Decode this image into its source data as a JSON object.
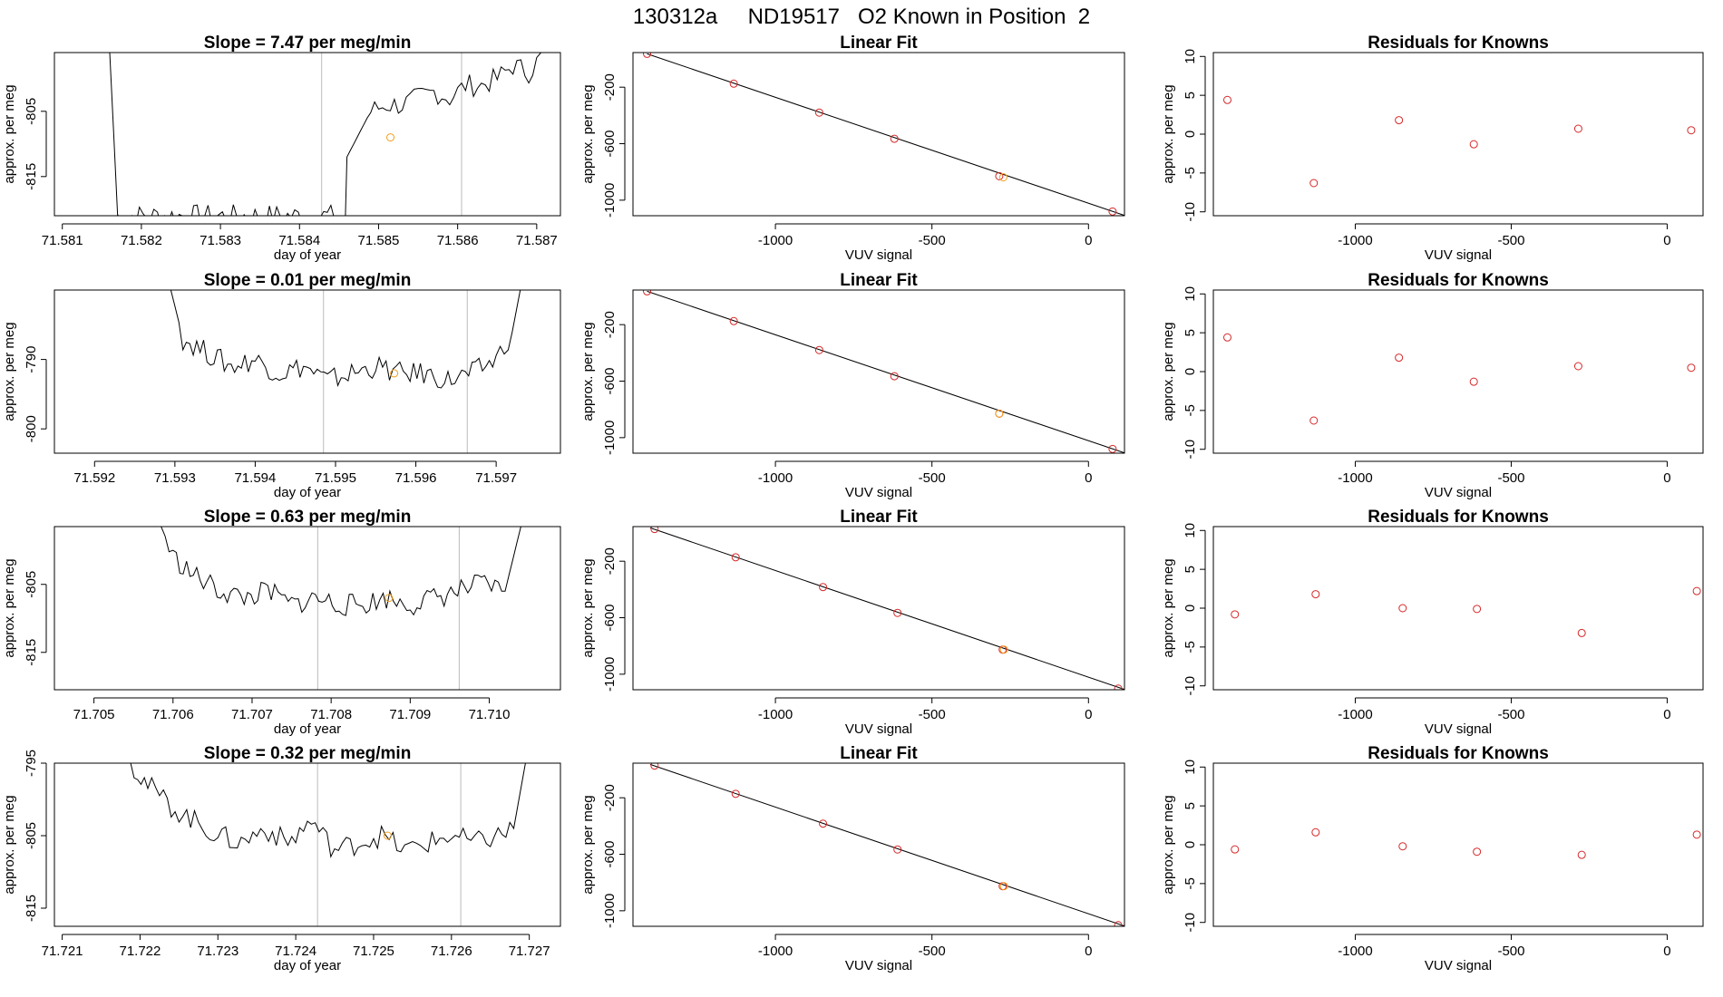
{
  "page_title": "130312a     ND19517   O2 Known in Position  2",
  "colors": {
    "line": "#000000",
    "point_red": "#d62728",
    "point_orange": "#f2a01f",
    "vline": "#bbbbbb"
  },
  "chart_data": [
    {
      "type": "line",
      "row": 0,
      "title": "Slope =  7.47  per meg/min",
      "xlabel": "day of year",
      "ylabel": "approx. per meg",
      "xlim": [
        71.5809,
        71.5873
      ],
      "ylim": [
        -821,
        -796
      ],
      "x_ticks": [
        71.581,
        71.582,
        71.583,
        71.584,
        71.585,
        71.586,
        71.587
      ],
      "y_ticks": [
        -805,
        -815
      ],
      "vlines": [
        71.58428,
        71.58605
      ],
      "series": [
        {
          "x": [
            71.5816,
            71.5817,
            71.5817,
            71.58458,
            71.5846,
            71.5849,
            71.5851,
            71.5853,
            71.5855,
            71.5857,
            71.5859,
            71.5861,
            71.5863,
            71.5865,
            71.5867,
            71.5869,
            71.5871,
            71.5872
          ],
          "y": [
            -796,
            -821,
            -821,
            -821,
            -812,
            -805,
            -804,
            -804,
            -803,
            -802,
            -803,
            -801,
            -801,
            -800,
            -798,
            -799,
            -796,
            -796
          ]
        }
      ],
      "highlight": [
        {
          "x": 71.58515,
          "y": -809
        }
      ]
    },
    {
      "type": "line",
      "row": 1,
      "title": "Slope =  0.01  per meg/min",
      "xlabel": "day of year",
      "ylabel": "approx. per meg",
      "xlim": [
        71.5915,
        71.5978
      ],
      "ylim": [
        -803.5,
        -780
      ],
      "x_ticks": [
        71.592,
        71.593,
        71.594,
        71.595,
        71.596,
        71.597
      ],
      "y_ticks": [
        -790,
        -800
      ],
      "vlines": [
        71.59485,
        71.59664
      ],
      "series": [
        {
          "x": [
            71.59295,
            71.5931,
            71.5934,
            71.5937,
            71.594,
            71.5943,
            71.5946,
            71.5949,
            71.5952,
            71.5955,
            71.5958,
            71.5961,
            71.5964,
            71.5967,
            71.597,
            71.5972,
            71.5973
          ],
          "y": [
            -780,
            -787,
            -789,
            -791,
            -790,
            -792,
            -791,
            -793,
            -792,
            -791,
            -792,
            -792,
            -793,
            -792,
            -790,
            -786,
            -780
          ]
        }
      ],
      "highlight": [
        {
          "x": 71.59573,
          "y": -792
        }
      ]
    },
    {
      "type": "line",
      "row": 2,
      "title": "Slope =  0.63  per meg/min",
      "xlabel": "day of year",
      "ylabel": "approx. per meg",
      "xlim": [
        71.7045,
        71.7109
      ],
      "ylim": [
        -820.5,
        -796.5
      ],
      "x_ticks": [
        71.705,
        71.706,
        71.707,
        71.708,
        71.709,
        71.71
      ],
      "y_ticks": [
        -805,
        -815
      ],
      "vlines": [
        71.70783,
        71.70962
      ],
      "series": [
        {
          "x": [
            71.70585,
            71.706,
            71.7063,
            71.7066,
            71.7069,
            71.7072,
            71.7075,
            71.7078,
            71.7081,
            71.7084,
            71.7087,
            71.709,
            71.7093,
            71.7096,
            71.7099,
            71.7102,
            71.7104
          ],
          "y": [
            -796.5,
            -801,
            -804,
            -806,
            -807,
            -806,
            -808,
            -807,
            -808,
            -808,
            -807,
            -808,
            -807,
            -806,
            -805,
            -806,
            -796.5
          ]
        }
      ],
      "highlight": [
        {
          "x": 71.70873,
          "y": -807
        }
      ]
    },
    {
      "type": "line",
      "row": 3,
      "title": "Slope =  0.32  per meg/min",
      "xlabel": "day of year",
      "ylabel": "approx. per meg",
      "xlim": [
        71.7209,
        71.7274
      ],
      "ylim": [
        -817.5,
        -795
      ],
      "x_ticks": [
        71.721,
        71.722,
        71.723,
        71.724,
        71.725,
        71.726,
        71.727
      ],
      "y_ticks": [
        -795,
        -805,
        -815
      ],
      "vlines": [
        71.72428,
        71.72612
      ],
      "series": [
        {
          "x": [
            71.72188,
            71.7221,
            71.7224,
            71.7227,
            71.723,
            71.7233,
            71.7236,
            71.7239,
            71.7242,
            71.7245,
            71.7248,
            71.7251,
            71.7254,
            71.7257,
            71.726,
            71.7263,
            71.7266,
            71.7268,
            71.72695
          ],
          "y": [
            -795,
            -798,
            -801,
            -803,
            -805,
            -806,
            -804,
            -806,
            -803,
            -807,
            -806,
            -805,
            -807,
            -806,
            -805,
            -806,
            -805,
            -804,
            -795
          ]
        }
      ],
      "highlight": [
        {
          "x": 71.72518,
          "y": -805
        }
      ]
    },
    {
      "type": "scatter",
      "row": 0,
      "title": "Linear Fit",
      "xlabel": "VUV signal",
      "ylabel": "approx. per meg",
      "xlim": [
        -1455,
        115
      ],
      "ylim": [
        -1110,
        45
      ],
      "x_ticks": [
        -1000,
        -500,
        0
      ],
      "y_ticks": [
        -200,
        -600,
        -1000
      ],
      "fit_line": {
        "x": [
          -1410,
          115
        ],
        "y": [
          36,
          -1108
        ]
      },
      "points": {
        "x": [
          -1410,
          -1133,
          -860,
          -620,
          -285,
          77
        ],
        "y": [
          36,
          -175,
          -380,
          -565,
          -830,
          -1080
        ]
      },
      "highlight": [
        {
          "x": -272,
          "y": -838
        }
      ]
    },
    {
      "type": "scatter",
      "row": 1,
      "title": "Linear Fit",
      "xlabel": "VUV signal",
      "ylabel": "approx. per meg",
      "xlim": [
        -1455,
        115
      ],
      "ylim": [
        -1110,
        45
      ],
      "x_ticks": [
        -1000,
        -500,
        0
      ],
      "y_ticks": [
        -200,
        -600,
        -1000
      ],
      "fit_line": {
        "x": [
          -1410,
          115
        ],
        "y": [
          36,
          -1108
        ]
      },
      "points": {
        "x": [
          -1410,
          -1133,
          -860,
          -620,
          -285,
          77
        ],
        "y": [
          36,
          -175,
          -380,
          -565,
          -830,
          -1080
        ]
      },
      "highlight": [
        {
          "x": -285,
          "y": -830
        }
      ]
    },
    {
      "type": "scatter",
      "row": 2,
      "title": "Linear Fit",
      "xlabel": "VUV signal",
      "ylabel": "approx. per meg",
      "xlim": [
        -1455,
        115
      ],
      "ylim": [
        -1110,
        45
      ],
      "x_ticks": [
        -1000,
        -500,
        0
      ],
      "y_ticks": [
        -200,
        -600,
        -1000
      ],
      "fit_line": {
        "x": [
          -1400,
          115
        ],
        "y": [
          36,
          -1108
        ]
      },
      "points": {
        "x": [
          -1386,
          -1127,
          -848,
          -610,
          -274,
          95
        ],
        "y": [
          28,
          -172,
          -383,
          -566,
          -826,
          -1102
        ]
      },
      "highlight": [
        {
          "x": -270,
          "y": -826
        }
      ]
    },
    {
      "type": "scatter",
      "row": 3,
      "title": "Linear Fit",
      "xlabel": "VUV signal",
      "ylabel": "approx. per meg",
      "xlim": [
        -1455,
        115
      ],
      "ylim": [
        -1110,
        45
      ],
      "x_ticks": [
        -1000,
        -500,
        0
      ],
      "y_ticks": [
        -200,
        -600,
        -1000
      ],
      "fit_line": {
        "x": [
          -1400,
          115
        ],
        "y": [
          36,
          -1108
        ]
      },
      "points": {
        "x": [
          -1386,
          -1127,
          -848,
          -610,
          -274,
          95
        ],
        "y": [
          28,
          -172,
          -383,
          -566,
          -826,
          -1102
        ]
      },
      "highlight": [
        {
          "x": -270,
          "y": -826
        }
      ]
    },
    {
      "type": "scatter",
      "row": 0,
      "title": "Residuals for Knowns",
      "xlabel": "VUV signal",
      "ylabel": "approx. per meg",
      "xlim": [
        -1455,
        115
      ],
      "ylim": [
        -10.5,
        10.5
      ],
      "x_ticks": [
        -1000,
        -500,
        0
      ],
      "y_ticks": [
        10,
        5,
        0,
        -5,
        -10
      ],
      "points": {
        "x": [
          -1410,
          -1133,
          -860,
          -620,
          -285,
          77
        ],
        "y": [
          4.4,
          -6.3,
          1.8,
          -1.3,
          0.7,
          0.5
        ]
      }
    },
    {
      "type": "scatter",
      "row": 1,
      "title": "Residuals for Knowns",
      "xlabel": "VUV signal",
      "ylabel": "approx. per meg",
      "xlim": [
        -1455,
        115
      ],
      "ylim": [
        -10.5,
        10.5
      ],
      "x_ticks": [
        -1000,
        -500,
        0
      ],
      "y_ticks": [
        10,
        5,
        0,
        -5,
        -10
      ],
      "points": {
        "x": [
          -1410,
          -1133,
          -860,
          -620,
          -285,
          77
        ],
        "y": [
          4.4,
          -6.3,
          1.8,
          -1.3,
          0.7,
          0.5
        ]
      }
    },
    {
      "type": "scatter",
      "row": 2,
      "title": "Residuals for Knowns",
      "xlabel": "VUV signal",
      "ylabel": "approx. per meg",
      "xlim": [
        -1455,
        115
      ],
      "ylim": [
        -10.5,
        10.5
      ],
      "x_ticks": [
        -1000,
        -500,
        0
      ],
      "y_ticks": [
        10,
        5,
        0,
        -5,
        -10
      ],
      "points": {
        "x": [
          -1386,
          -1127,
          -848,
          -610,
          -274,
          95
        ],
        "y": [
          -0.8,
          1.8,
          0.0,
          -0.1,
          -3.2,
          2.2
        ]
      }
    },
    {
      "type": "scatter",
      "row": 3,
      "title": "Residuals for Knowns",
      "xlabel": "VUV signal",
      "ylabel": "approx. per meg",
      "xlim": [
        -1455,
        115
      ],
      "ylim": [
        -10.5,
        10.5
      ],
      "x_ticks": [
        -1000,
        -500,
        0
      ],
      "y_ticks": [
        10,
        5,
        0,
        -5,
        -10
      ],
      "points": {
        "x": [
          -1386,
          -1127,
          -848,
          -610,
          -274,
          95
        ],
        "y": [
          -0.6,
          1.6,
          -0.2,
          -0.9,
          -1.3,
          1.3
        ]
      }
    }
  ]
}
